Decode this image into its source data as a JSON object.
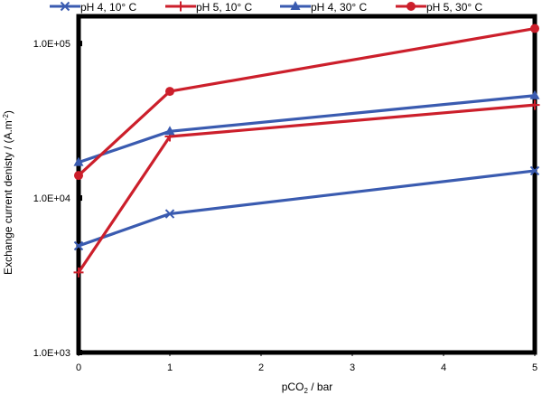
{
  "chart_data": {
    "type": "line",
    "x": [
      0,
      1,
      5
    ],
    "xticks": [
      "0",
      "1",
      "2",
      "3",
      "4",
      "5"
    ],
    "xlim": [
      0,
      5
    ],
    "ylim": [
      1000,
      150000
    ],
    "yscale": "log",
    "yticks": [
      {
        "value": 1000,
        "label": "1.0E+03"
      },
      {
        "value": 10000,
        "label": "1.0E+04"
      },
      {
        "value": 100000,
        "label": "1.0E+05"
      }
    ],
    "xlabel_main": "pCO",
    "xlabel_sub": "2",
    "xlabel_rest": " / bar",
    "ylabel_main": "Exchange current denisty / (A.m",
    "ylabel_sup": "-2",
    "ylabel_rest": ")",
    "grid": false,
    "legend_position": "top",
    "series": [
      {
        "name": "pH 4, 10° C",
        "color": "#3a5bb0",
        "marker": "x",
        "values": [
          4900,
          7900,
          15000
        ]
      },
      {
        "name": "pH 5, 10° C",
        "color": "#cc1f2b",
        "marker": "plus",
        "values": [
          3300,
          25000,
          40000
        ]
      },
      {
        "name": "pH 4, 30° C",
        "color": "#3a5bb0",
        "marker": "triangle",
        "values": [
          17000,
          27000,
          46000
        ]
      },
      {
        "name": "pH 5, 30° C",
        "color": "#cc1f2b",
        "marker": "circle",
        "values": [
          14000,
          49000,
          125000
        ]
      }
    ]
  }
}
